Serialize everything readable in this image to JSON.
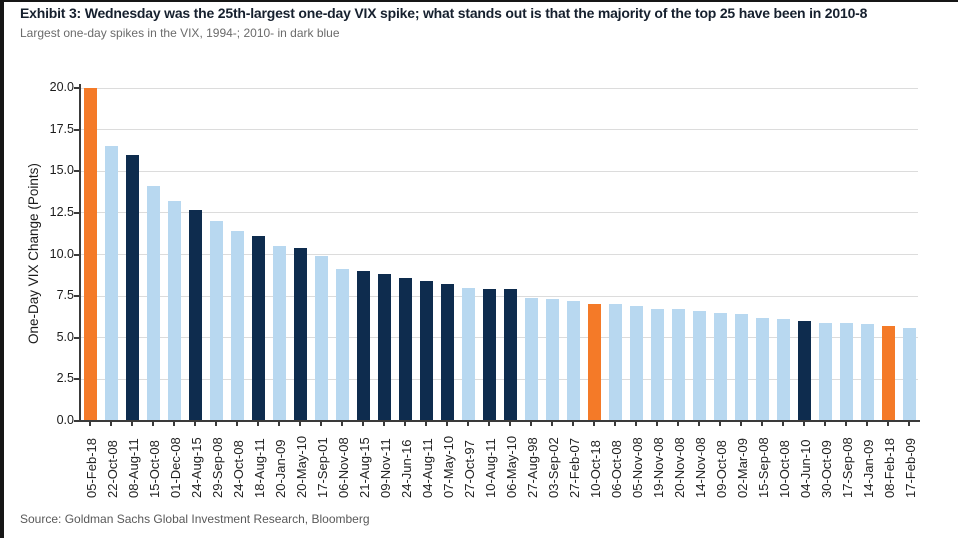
{
  "header": {
    "title": "Exhibit 3: Wednesday was the 25th-largest one-day VIX spike; what stands out is that the majority of the top 25 have been in 2010-8",
    "subtitle": "Largest one-day spikes in the VIX, 1994-; 2010- in dark blue"
  },
  "footer": {
    "source": "Source: Goldman Sachs Global Investment Research, Bloomberg"
  },
  "chart_data": {
    "type": "bar",
    "title": "Exhibit 3: Wednesday was the 25th-largest one-day VIX spike; what stands out is that the majority of the top 25 have been in 2010-8",
    "subtitle": "Largest one-day spikes in the VIX, 1994-; 2010- in dark blue",
    "xlabel": "",
    "ylabel": "One-Day VIX Change (Points)",
    "ylim": [
      0,
      20
    ],
    "yticks": [
      0.0,
      2.5,
      5.0,
      7.5,
      10.0,
      12.5,
      15.0,
      17.5,
      20.0
    ],
    "grid": "horizontal",
    "legend": "none",
    "palette": {
      "light": "#B8D8F0",
      "dark": "#0E2C4E",
      "orange": "#F47A28"
    },
    "categories": [
      "05-Feb-18",
      "22-Oct-08",
      "08-Aug-11",
      "15-Oct-08",
      "01-Dec-08",
      "24-Aug-15",
      "29-Sep-08",
      "24-Oct-08",
      "18-Aug-11",
      "20-Jan-09",
      "20-May-10",
      "17-Sep-01",
      "06-Nov-08",
      "21-Aug-15",
      "09-Nov-11",
      "24-Jun-16",
      "04-Aug-11",
      "07-May-10",
      "27-Oct-97",
      "10-Aug-11",
      "06-May-10",
      "27-Aug-98",
      "03-Sep-02",
      "27-Feb-07",
      "10-Oct-18",
      "06-Oct-08",
      "05-Nov-08",
      "19-Nov-08",
      "20-Nov-08",
      "14-Nov-08",
      "09-Oct-08",
      "02-Mar-09",
      "15-Sep-08",
      "10-Oct-08",
      "04-Jun-10",
      "30-Oct-09",
      "17-Sep-08",
      "14-Jan-09",
      "08-Feb-18",
      "17-Feb-09"
    ],
    "values": [
      20.0,
      16.5,
      16.0,
      14.1,
      13.2,
      12.7,
      12.0,
      11.4,
      11.1,
      10.5,
      10.4,
      9.9,
      9.1,
      9.0,
      8.8,
      8.6,
      8.4,
      8.2,
      8.0,
      7.9,
      7.9,
      7.4,
      7.3,
      7.2,
      7.0,
      7.0,
      6.9,
      6.7,
      6.7,
      6.6,
      6.5,
      6.4,
      6.2,
      6.1,
      6.0,
      5.9,
      5.9,
      5.8,
      5.7,
      5.6
    ],
    "bar_colors": [
      "orange",
      "light",
      "dark",
      "light",
      "light",
      "dark",
      "light",
      "light",
      "dark",
      "light",
      "dark",
      "light",
      "light",
      "dark",
      "dark",
      "dark",
      "dark",
      "dark",
      "light",
      "dark",
      "dark",
      "light",
      "light",
      "light",
      "orange",
      "light",
      "light",
      "light",
      "light",
      "light",
      "light",
      "light",
      "light",
      "light",
      "dark",
      "light",
      "light",
      "light",
      "orange",
      "light"
    ]
  }
}
